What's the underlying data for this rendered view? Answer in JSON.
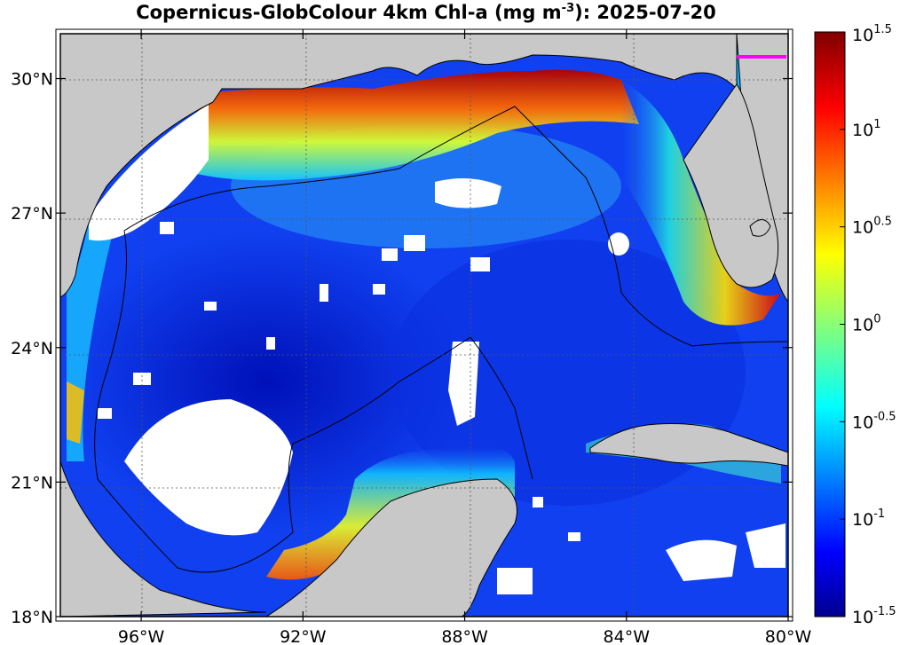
{
  "title": {
    "prefix": "Copernicus-GlobColour 4km Chl-a (mg m",
    "exponent": "-3",
    "suffix": "): 2025-07-20"
  },
  "map": {
    "lon_range": [
      -98,
      -80
    ],
    "lat_range": [
      18,
      31
    ],
    "lat_ticks": [
      {
        "value": 30,
        "label": "30°N"
      },
      {
        "value": 27,
        "label": "27°N"
      },
      {
        "value": 24,
        "label": "24°N"
      },
      {
        "value": 21,
        "label": "21°N"
      },
      {
        "value": 18,
        "label": "18°N"
      }
    ],
    "lon_ticks": [
      {
        "value": -96,
        "label": "96°W"
      },
      {
        "value": -92,
        "label": "92°W"
      },
      {
        "value": -88,
        "label": "88°W"
      },
      {
        "value": -84,
        "label": "84°W"
      },
      {
        "value": -80,
        "label": "80°W"
      }
    ],
    "land_color": "#c8c8c8",
    "missing_data_color": "#ffffff",
    "grid": true
  },
  "colorbar": {
    "scale": "log10",
    "range": [
      -1.5,
      1.5
    ],
    "colormap": "jet",
    "ticks": [
      {
        "value": 1.5,
        "base": "10",
        "exp": "1.5"
      },
      {
        "value": 1.0,
        "base": "10",
        "exp": "1"
      },
      {
        "value": 0.5,
        "base": "10",
        "exp": "0.5"
      },
      {
        "value": 0.0,
        "base": "10",
        "exp": "0"
      },
      {
        "value": -0.5,
        "base": "10",
        "exp": "-0.5"
      },
      {
        "value": -1.0,
        "base": "10",
        "exp": "-1"
      },
      {
        "value": -1.5,
        "base": "10",
        "exp": "-1.5"
      }
    ]
  }
}
